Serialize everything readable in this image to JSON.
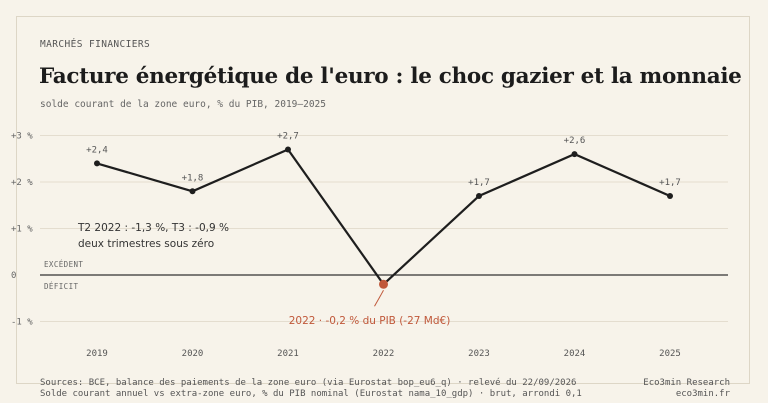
{
  "header": {
    "kicker": "MARCHÉS FINANCIERS",
    "title": "Facture énergétique de l'euro : le choc gazier et la monnaie",
    "subtitle": "solde courant de la zone euro, % du PIB, 2019–2025"
  },
  "chart_data": {
    "type": "line",
    "x": [
      "2019",
      "2020",
      "2021",
      "2022",
      "2023",
      "2024",
      "2025"
    ],
    "series": [
      {
        "values": [
          2.4,
          1.8,
          2.7,
          -0.2,
          1.7,
          2.6,
          1.7
        ]
      }
    ],
    "data_labels": [
      "+2,4",
      "+1,8",
      "+2,7",
      "",
      "+1,7",
      "+2,6",
      "+1,7"
    ],
    "ylim": [
      -1.4,
      3.1
    ],
    "y_ticks": [
      {
        "value": 3,
        "label": "+3 %"
      },
      {
        "value": 2,
        "label": "+2 %"
      },
      {
        "value": 1,
        "label": "+1 %"
      },
      {
        "value": 0,
        "label": "0"
      },
      {
        "value": -1,
        "label": "-1 %"
      }
    ],
    "zero_labels": {
      "above": "EXCÉDENT",
      "below": "DÉFICIT"
    },
    "annotations": {
      "highlight": {
        "index": 3,
        "text": "2022 · -0,2 % du PIB (-27 Md€)"
      },
      "note_line1": "T2 2022 : -1,3 %, T3 : -0,9 %",
      "note_line2": "deux trimestres sous zéro"
    },
    "grid": true,
    "colors": {
      "line": "#1e1e1e",
      "highlight": "#c0583a",
      "grid": "#e4ddcf",
      "zero": "#333333"
    }
  },
  "footer": {
    "source_line1": "Sources: BCE, balance des paiements de la zone euro (via Eurostat bop_eu6_q) · relevé du 22/09/2026",
    "source_line2": "Solde courant annuel vs extra-zone euro, % du PIB nominal (Eurostat nama_10_gdp) · brut, arrondi 0,1",
    "brand": "Eco3min Research",
    "site": "eco3min.fr"
  }
}
